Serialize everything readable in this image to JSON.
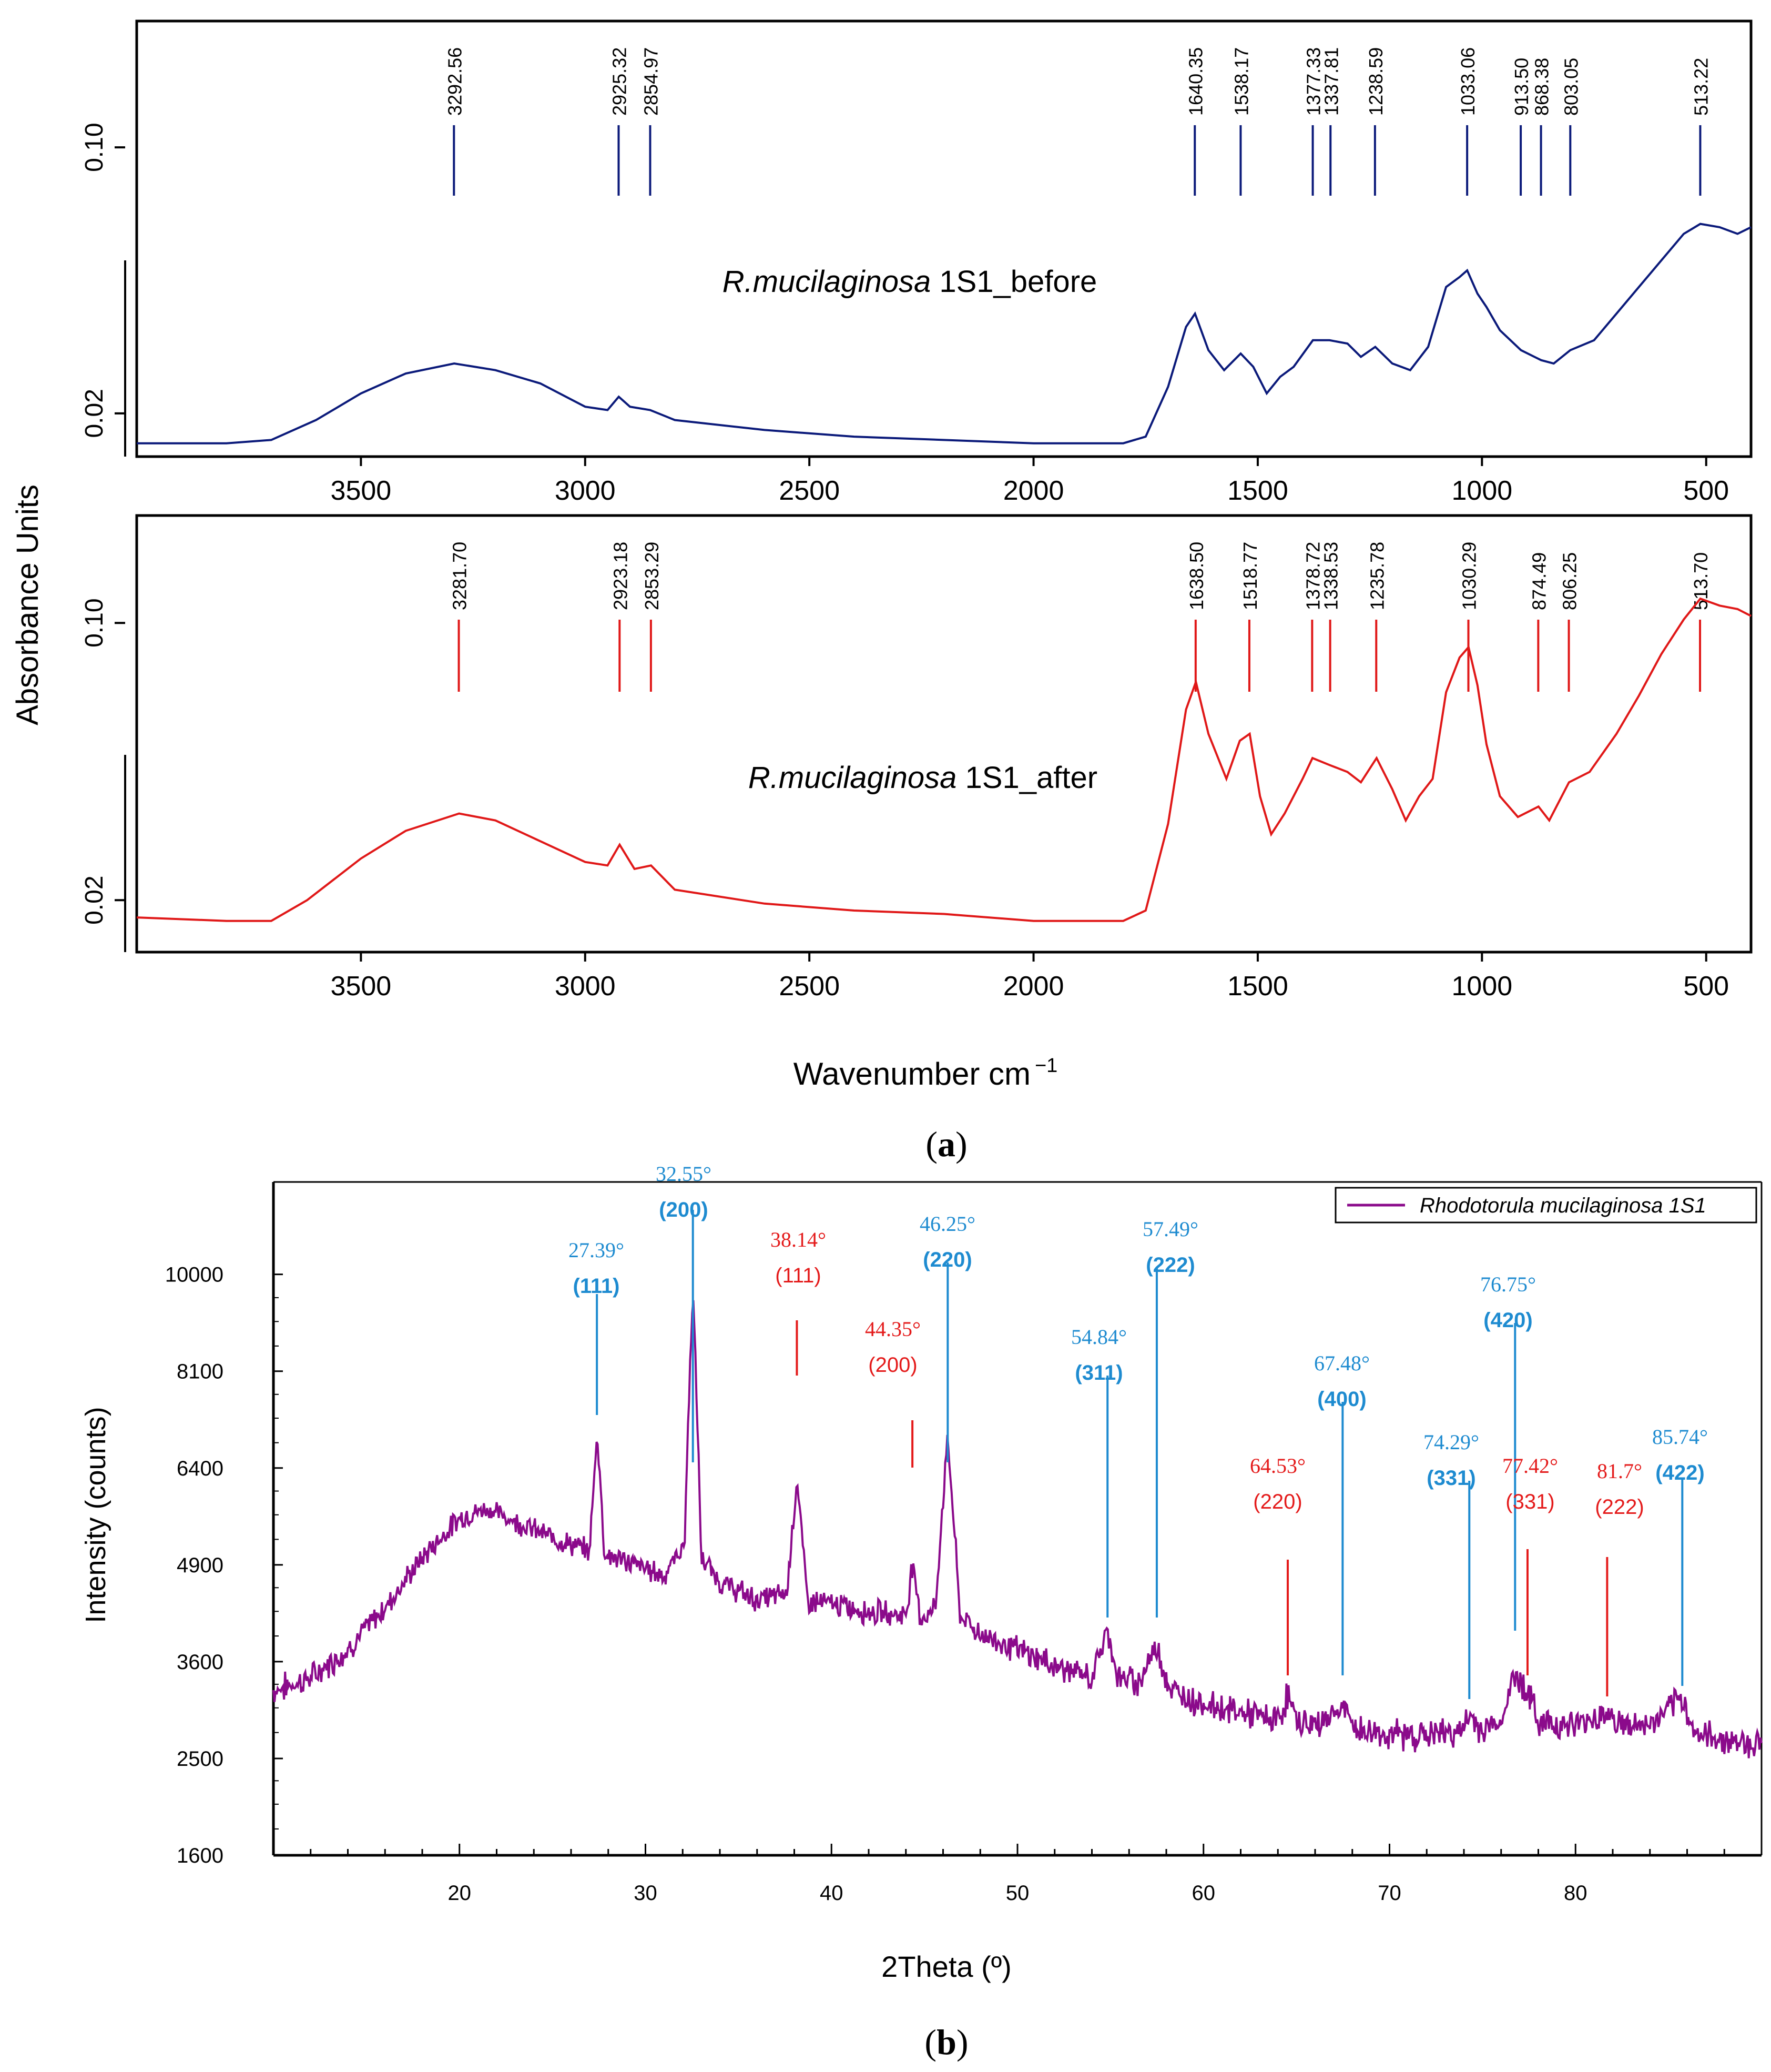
{
  "colors": {
    "before": "#0b1a7a",
    "after": "#e01818",
    "xrd": "#8b0a8b",
    "blue_label": "#1e8bd0",
    "red_label": "#e41b1b",
    "axis": "#000000"
  },
  "chart_data": [
    {
      "id": "ftir",
      "type": "line",
      "title": "",
      "ylabel": "Absorbance Units",
      "xlabel": "Wavenumber cm",
      "xlabel_sup": "−1",
      "caption_letter": "a",
      "xlim": [
        4000,
        400
      ],
      "xticks": [
        "3500",
        "3000",
        "2500",
        "2000",
        "1500",
        "1000",
        "500"
      ],
      "xtick_values": [
        3500,
        3000,
        2500,
        2000,
        1500,
        1000,
        500
      ],
      "panels": [
        {
          "name": "before",
          "label_species": "R.mucilaginosa",
          "label_suffix": " 1S1_before",
          "yticks": [
            "0.02",
            "0.10"
          ],
          "ytick_values": [
            0.02,
            0.1
          ],
          "ylim": [
            0.007,
            0.138
          ],
          "peaks": [
            "3292.56",
            "2925.32",
            "2854.97",
            "1640.35",
            "1538.17",
            "1377.33",
            "1337.81",
            "1238.59",
            "1033.06",
            "913.50",
            "868.38",
            "803.05",
            "513.22"
          ],
          "peak_values": [
            3292.56,
            2925.32,
            2854.97,
            1640.35,
            1538.17,
            1377.33,
            1337.81,
            1238.59,
            1033.06,
            913.5,
            868.38,
            803.05,
            513.22
          ],
          "spectrum": [
            [
              4000,
              0.011
            ],
            [
              3800,
              0.011
            ],
            [
              3700,
              0.012
            ],
            [
              3600,
              0.018
            ],
            [
              3500,
              0.026
            ],
            [
              3400,
              0.032
            ],
            [
              3292,
              0.035
            ],
            [
              3200,
              0.033
            ],
            [
              3100,
              0.029
            ],
            [
              3000,
              0.022
            ],
            [
              2950,
              0.021
            ],
            [
              2925,
              0.025
            ],
            [
              2900,
              0.022
            ],
            [
              2855,
              0.021
            ],
            [
              2800,
              0.018
            ],
            [
              2600,
              0.015
            ],
            [
              2400,
              0.013
            ],
            [
              2200,
              0.012
            ],
            [
              2000,
              0.011
            ],
            [
              1800,
              0.011
            ],
            [
              1750,
              0.013
            ],
            [
              1700,
              0.028
            ],
            [
              1660,
              0.046
            ],
            [
              1640,
              0.05
            ],
            [
              1610,
              0.039
            ],
            [
              1575,
              0.033
            ],
            [
              1538,
              0.038
            ],
            [
              1510,
              0.034
            ],
            [
              1480,
              0.026
            ],
            [
              1450,
              0.031
            ],
            [
              1420,
              0.034
            ],
            [
              1377,
              0.042
            ],
            [
              1340,
              0.042
            ],
            [
              1300,
              0.041
            ],
            [
              1270,
              0.037
            ],
            [
              1238,
              0.04
            ],
            [
              1200,
              0.035
            ],
            [
              1160,
              0.033
            ],
            [
              1120,
              0.04
            ],
            [
              1080,
              0.058
            ],
            [
              1050,
              0.061
            ],
            [
              1033,
              0.063
            ],
            [
              1010,
              0.056
            ],
            [
              990,
              0.052
            ],
            [
              960,
              0.045
            ],
            [
              913,
              0.039
            ],
            [
              868,
              0.036
            ],
            [
              840,
              0.035
            ],
            [
              803,
              0.039
            ],
            [
              750,
              0.042
            ],
            [
              700,
              0.05
            ],
            [
              650,
              0.058
            ],
            [
              600,
              0.066
            ],
            [
              550,
              0.074
            ],
            [
              513,
              0.077
            ],
            [
              470,
              0.076
            ],
            [
              430,
              0.074
            ],
            [
              400,
              0.076
            ]
          ]
        },
        {
          "name": "after",
          "label_species": "R.mucilaginosa",
          "label_suffix": " 1S1_after",
          "yticks": [
            "0.02",
            "0.10"
          ],
          "ytick_values": [
            0.02,
            0.1
          ],
          "ylim": [
            0.005,
            0.131
          ],
          "peaks": [
            "3281.70",
            "2923.18",
            "2853.29",
            "1638.50",
            "1518.77",
            "1378.72",
            "1338.53",
            "1235.78",
            "1030.29",
            "874.49",
            "806.25",
            "513.70"
          ],
          "peak_values": [
            3281.7,
            2923.18,
            2853.29,
            1638.5,
            1518.77,
            1378.72,
            1338.53,
            1235.78,
            1030.29,
            874.49,
            806.25,
            513.7
          ],
          "spectrum": [
            [
              4000,
              0.015
            ],
            [
              3800,
              0.014
            ],
            [
              3700,
              0.014
            ],
            [
              3620,
              0.02
            ],
            [
              3500,
              0.032
            ],
            [
              3400,
              0.04
            ],
            [
              3281,
              0.045
            ],
            [
              3200,
              0.043
            ],
            [
              3100,
              0.037
            ],
            [
              3000,
              0.031
            ],
            [
              2950,
              0.03
            ],
            [
              2923,
              0.036
            ],
            [
              2890,
              0.029
            ],
            [
              2853,
              0.03
            ],
            [
              2800,
              0.023
            ],
            [
              2600,
              0.019
            ],
            [
              2400,
              0.017
            ],
            [
              2200,
              0.016
            ],
            [
              2000,
              0.014
            ],
            [
              1800,
              0.014
            ],
            [
              1750,
              0.017
            ],
            [
              1700,
              0.042
            ],
            [
              1660,
              0.075
            ],
            [
              1638,
              0.083
            ],
            [
              1610,
              0.068
            ],
            [
              1570,
              0.055
            ],
            [
              1540,
              0.066
            ],
            [
              1518,
              0.068
            ],
            [
              1495,
              0.05
            ],
            [
              1470,
              0.039
            ],
            [
              1440,
              0.045
            ],
            [
              1400,
              0.055
            ],
            [
              1378,
              0.061
            ],
            [
              1340,
              0.059
            ],
            [
              1300,
              0.057
            ],
            [
              1270,
              0.054
            ],
            [
              1235,
              0.061
            ],
            [
              1200,
              0.052
            ],
            [
              1170,
              0.043
            ],
            [
              1140,
              0.05
            ],
            [
              1110,
              0.055
            ],
            [
              1080,
              0.08
            ],
            [
              1050,
              0.09
            ],
            [
              1030,
              0.093
            ],
            [
              1010,
              0.082
            ],
            [
              990,
              0.065
            ],
            [
              960,
              0.05
            ],
            [
              920,
              0.044
            ],
            [
              874,
              0.047
            ],
            [
              850,
              0.043
            ],
            [
              806,
              0.054
            ],
            [
              760,
              0.057
            ],
            [
              700,
              0.068
            ],
            [
              650,
              0.079
            ],
            [
              600,
              0.091
            ],
            [
              550,
              0.101
            ],
            [
              513,
              0.107
            ],
            [
              470,
              0.105
            ],
            [
              430,
              0.104
            ],
            [
              400,
              0.102
            ]
          ]
        }
      ]
    },
    {
      "id": "xrd",
      "type": "line",
      "title": "",
      "ylabel": "Intensity (counts)",
      "xlabel": "2Theta (º)",
      "caption_letter": "b",
      "legend": "Rhodotorula mucilaginosa 1S1",
      "legend_position": "top-right",
      "xlim": [
        10,
        90
      ],
      "ylim": [
        1600,
        12000
      ],
      "yscale": "sqrt",
      "xticks": [
        "20",
        "30",
        "40",
        "50",
        "60",
        "70",
        "80"
      ],
      "xtick_values": [
        20,
        30,
        40,
        50,
        60,
        70,
        80
      ],
      "yticks": [
        "1600",
        "2500",
        "3600",
        "4900",
        "6400",
        "8100",
        "10000"
      ],
      "ytick_values": [
        1600,
        2500,
        3600,
        4900,
        6400,
        8100,
        10000
      ],
      "pattern": [
        [
          10,
          3250
        ],
        [
          12,
          3400
        ],
        [
          14,
          3750
        ],
        [
          16,
          4300
        ],
        [
          18,
          5000
        ],
        [
          20,
          5600
        ],
        [
          21.5,
          5750
        ],
        [
          23,
          5550
        ],
        [
          25,
          5300
        ],
        [
          27,
          5100
        ],
        [
          27.4,
          7000
        ],
        [
          27.8,
          5050
        ],
        [
          29,
          4950
        ],
        [
          31,
          4750
        ],
        [
          32.1,
          5200
        ],
        [
          32.55,
          9700
        ],
        [
          33,
          5000
        ],
        [
          34,
          4650
        ],
        [
          36,
          4400
        ],
        [
          37.6,
          4500
        ],
        [
          38.14,
          6200
        ],
        [
          38.7,
          4400
        ],
        [
          40,
          4350
        ],
        [
          42,
          4250
        ],
        [
          44,
          4200
        ],
        [
          44.35,
          4900
        ],
        [
          44.8,
          4150
        ],
        [
          45.6,
          4300
        ],
        [
          46.25,
          6900
        ],
        [
          46.9,
          4200
        ],
        [
          48,
          3950
        ],
        [
          50,
          3750
        ],
        [
          52,
          3550
        ],
        [
          54,
          3400
        ],
        [
          54.84,
          4000
        ],
        [
          55.4,
          3400
        ],
        [
          56.5,
          3350
        ],
        [
          57.49,
          3800
        ],
        [
          58.2,
          3250
        ],
        [
          60,
          3100
        ],
        [
          62,
          3000
        ],
        [
          64,
          2900
        ],
        [
          64.53,
          3200
        ],
        [
          65,
          2900
        ],
        [
          66,
          2850
        ],
        [
          67.48,
          3050
        ],
        [
          68.2,
          2800
        ],
        [
          70,
          2750
        ],
        [
          72,
          2750
        ],
        [
          74,
          2800
        ],
        [
          74.29,
          2950
        ],
        [
          75,
          2800
        ],
        [
          76,
          2900
        ],
        [
          76.75,
          3450
        ],
        [
          77.42,
          3250
        ],
        [
          78,
          2900
        ],
        [
          80,
          2850
        ],
        [
          81.7,
          3000
        ],
        [
          82.5,
          2850
        ],
        [
          84,
          2850
        ],
        [
          85.74,
          3150
        ],
        [
          86.5,
          2750
        ],
        [
          88,
          2700
        ],
        [
          90,
          2650
        ]
      ],
      "peak_labels": [
        {
          "angle": "27.39°",
          "hkl": "(111)",
          "x": 27.39,
          "color": "blue"
        },
        {
          "angle": "32.55°",
          "hkl": "(200)",
          "x": 32.55,
          "color": "blue"
        },
        {
          "angle": "38.14°",
          "hkl": "(111)",
          "x": 38.14,
          "color": "red"
        },
        {
          "angle": "44.35°",
          "hkl": "(200)",
          "x": 44.35,
          "color": "red"
        },
        {
          "angle": "46.25°",
          "hkl": "(220)",
          "x": 46.25,
          "color": "blue"
        },
        {
          "angle": "54.84°",
          "hkl": "(311)",
          "x": 54.84,
          "color": "blue"
        },
        {
          "angle": "57.49°",
          "hkl": "(222)",
          "x": 57.49,
          "color": "blue"
        },
        {
          "angle": "64.53°",
          "hkl": "(220)",
          "x": 64.53,
          "color": "red"
        },
        {
          "angle": "67.48°",
          "hkl": "(400)",
          "x": 67.48,
          "color": "blue"
        },
        {
          "angle": "74.29°",
          "hkl": "(331)",
          "x": 74.29,
          "color": "blue"
        },
        {
          "angle": "76.75°",
          "hkl": "(420)",
          "x": 76.75,
          "color": "blue"
        },
        {
          "angle": "77.42°",
          "hkl": "(331)",
          "x": 77.42,
          "color": "red"
        },
        {
          "angle": "81.7°",
          "hkl": "(222)",
          "x": 81.7,
          "color": "red"
        },
        {
          "angle": "85.74°",
          "hkl": "(422)",
          "x": 85.74,
          "color": "blue"
        }
      ]
    }
  ]
}
